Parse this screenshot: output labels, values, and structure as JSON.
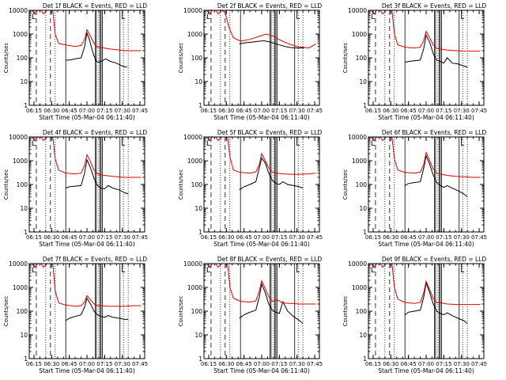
{
  "colors": {
    "events": "#000000",
    "lld": "#e00000",
    "axis": "#000000",
    "background": "#ffffff"
  },
  "x_tick_labels": [
    "06:15",
    "06:30",
    "06:45",
    "07:00",
    "07:15",
    "07:30",
    "07:45"
  ],
  "y_tick_labels": [
    "1",
    "10",
    "100",
    "1000",
    "10000"
  ],
  "ylabel": "Counts/sec",
  "xlabel": "Start Time (05-Mar-04 06:11:40)",
  "markers": {
    "dashed_lines": [
      "06:17",
      "06:29"
    ],
    "dotted_lines": [
      "06:25",
      "06:33",
      "07:10",
      "07:31",
      "07:35"
    ],
    "solid_lines": [
      "06:42",
      "07:07",
      "07:08",
      "07:11",
      "07:12",
      "07:13",
      "07:28"
    ],
    "corner_label_left": "L",
    "corner_label_right": "L"
  },
  "chart_data": [
    {
      "type": "line",
      "title": "Det 1f BLACK = Events, RED = LLD",
      "xlim": [
        "06:11",
        "07:49"
      ],
      "ylim": [
        1,
        10000
      ],
      "yscale": "log",
      "series": [
        {
          "name": "Events",
          "color": "#000000",
          "x": [
            "06:42",
            "06:45",
            "06:50",
            "06:55",
            "06:58",
            "07:00",
            "07:02",
            "07:04",
            "07:06",
            "07:08",
            "07:10",
            "07:13",
            "07:16",
            "07:20",
            "07:25",
            "07:30",
            "07:34"
          ],
          "values": [
            80,
            80,
            90,
            100,
            300,
            1100,
            600,
            250,
            120,
            70,
            65,
            75,
            90,
            70,
            60,
            45,
            40
          ]
        },
        {
          "name": "LLD",
          "color": "#e00000",
          "x": [
            "06:13",
            "06:16",
            "06:18",
            "06:21",
            "06:23",
            "06:26",
            "06:28",
            "06:31",
            "06:33",
            "06:36",
            "06:42",
            "06:50",
            "06:55",
            "06:58",
            "07:00",
            "07:03",
            "07:06",
            "07:09",
            "07:13",
            "07:18",
            "07:25",
            "07:32",
            "07:40",
            "07:46"
          ],
          "values": [
            10000,
            7000,
            10000,
            10000,
            7000,
            10000,
            10000,
            10000,
            1000,
            400,
            350,
            300,
            330,
            600,
            1500,
            800,
            400,
            280,
            270,
            240,
            220,
            200,
            200,
            200
          ]
        }
      ]
    },
    {
      "type": "line",
      "title": "Det 2f BLACK = Events, RED = LLD",
      "xlim": [
        "06:11",
        "07:49"
      ],
      "ylim": [
        1,
        10000
      ],
      "yscale": "log",
      "series": [
        {
          "name": "Events",
          "color": "#000000",
          "x": [
            "06:41",
            "06:45",
            "06:52",
            "06:58",
            "07:02",
            "07:06",
            "07:10",
            "07:15",
            "07:20",
            "07:25",
            "07:30",
            "07:36"
          ],
          "values": [
            380,
            420,
            460,
            500,
            520,
            480,
            420,
            350,
            300,
            270,
            260,
            260
          ]
        },
        {
          "name": "LLD",
          "color": "#e00000",
          "x": [
            "06:13",
            "06:16",
            "06:18",
            "06:21",
            "06:23",
            "06:26",
            "06:29",
            "06:32",
            "06:36",
            "06:42",
            "06:50",
            "06:58",
            "07:04",
            "07:10",
            "07:16",
            "07:22",
            "07:30",
            "07:40",
            "07:46"
          ],
          "values": [
            10000,
            7000,
            10000,
            10000,
            7000,
            10000,
            8000,
            2000,
            700,
            500,
            600,
            800,
            1000,
            800,
            550,
            400,
            300,
            260,
            380
          ]
        }
      ]
    },
    {
      "type": "line",
      "title": "Det 3f BLACK = Events, RED = LLD",
      "xlim": [
        "06:11",
        "07:49"
      ],
      "ylim": [
        1,
        10000
      ],
      "yscale": "log",
      "series": [
        {
          "name": "Events",
          "color": "#000000",
          "x": [
            "06:42",
            "06:45",
            "06:50",
            "06:55",
            "06:58",
            "07:00",
            "07:03",
            "07:06",
            "07:09",
            "07:12",
            "07:15",
            "07:18",
            "07:22",
            "07:27",
            "07:32",
            "07:35"
          ],
          "values": [
            65,
            70,
            75,
            80,
            250,
            900,
            450,
            150,
            80,
            70,
            60,
            100,
            60,
            55,
            45,
            40
          ]
        },
        {
          "name": "LLD",
          "color": "#e00000",
          "x": [
            "06:13",
            "06:16",
            "06:18",
            "06:21",
            "06:23",
            "06:26",
            "06:28",
            "06:31",
            "06:33",
            "06:36",
            "06:42",
            "06:50",
            "06:55",
            "06:58",
            "07:00",
            "07:03",
            "07:06",
            "07:09",
            "07:13",
            "07:18",
            "07:25",
            "07:32",
            "07:40",
            "07:46"
          ],
          "values": [
            10000,
            7000,
            10000,
            10000,
            7000,
            10000,
            10000,
            10000,
            1000,
            350,
            280,
            260,
            280,
            550,
            1300,
            700,
            350,
            250,
            230,
            210,
            200,
            190,
            190,
            190
          ]
        }
      ]
    },
    {
      "type": "line",
      "title": "Det 4f BLACK = Events, RED = LLD",
      "xlim": [
        "06:11",
        "07:49"
      ],
      "ylim": [
        1,
        10000
      ],
      "yscale": "log",
      "series": [
        {
          "name": "Events",
          "color": "#000000",
          "x": [
            "06:42",
            "06:45",
            "06:50",
            "06:55",
            "06:58",
            "07:00",
            "07:03",
            "07:06",
            "07:09",
            "07:12",
            "07:15",
            "07:18",
            "07:22",
            "07:27",
            "07:32",
            "07:35"
          ],
          "values": [
            70,
            80,
            85,
            90,
            300,
            1100,
            500,
            180,
            90,
            70,
            65,
            90,
            70,
            60,
            45,
            40
          ]
        },
        {
          "name": "LLD",
          "color": "#e00000",
          "x": [
            "06:13",
            "06:16",
            "06:18",
            "06:21",
            "06:23",
            "06:26",
            "06:28",
            "06:31",
            "06:33",
            "06:36",
            "06:42",
            "06:50",
            "06:55",
            "06:58",
            "07:00",
            "07:03",
            "07:06",
            "07:09",
            "07:13",
            "07:18",
            "07:25",
            "07:32",
            "07:40",
            "07:46"
          ],
          "values": [
            10000,
            7000,
            10000,
            10000,
            7000,
            10000,
            10000,
            10000,
            1200,
            400,
            300,
            280,
            300,
            650,
            1800,
            900,
            400,
            280,
            250,
            230,
            210,
            200,
            200,
            200
          ]
        }
      ]
    },
    {
      "type": "line",
      "title": "Det 5f BLACK = Events, RED = LLD",
      "xlim": [
        "06:11",
        "07:49"
      ],
      "ylim": [
        1,
        10000
      ],
      "yscale": "log",
      "series": [
        {
          "name": "Events",
          "color": "#000000",
          "x": [
            "06:41",
            "06:45",
            "06:50",
            "06:55",
            "06:58",
            "07:00",
            "07:03",
            "07:06",
            "07:09",
            "07:12",
            "07:15",
            "07:18",
            "07:22",
            "07:27",
            "07:32",
            "07:35"
          ],
          "values": [
            60,
            80,
            100,
            130,
            500,
            1300,
            800,
            300,
            150,
            110,
            100,
            130,
            100,
            90,
            80,
            70
          ]
        },
        {
          "name": "LLD",
          "color": "#e00000",
          "x": [
            "06:13",
            "06:16",
            "06:18",
            "06:21",
            "06:23",
            "06:26",
            "06:28",
            "06:31",
            "06:33",
            "06:36",
            "06:42",
            "06:50",
            "06:55",
            "06:58",
            "07:00",
            "07:03",
            "07:06",
            "07:09",
            "07:13",
            "07:18",
            "07:25",
            "07:32",
            "07:40",
            "07:46"
          ],
          "values": [
            10000,
            7000,
            10000,
            10000,
            7000,
            10000,
            10000,
            10000,
            1500,
            400,
            320,
            300,
            340,
            700,
            2000,
            1000,
            500,
            330,
            300,
            280,
            270,
            270,
            280,
            300
          ]
        }
      ]
    },
    {
      "type": "line",
      "title": "Det 6f BLACK = Events, RED = LLD",
      "xlim": [
        "06:11",
        "07:49"
      ],
      "ylim": [
        1,
        10000
      ],
      "yscale": "log",
      "series": [
        {
          "name": "Events",
          "color": "#000000",
          "x": [
            "06:42",
            "06:45",
            "06:50",
            "06:55",
            "06:58",
            "07:00",
            "07:03",
            "07:06",
            "07:09",
            "07:12",
            "07:15",
            "07:18",
            "07:22",
            "07:27",
            "07:32",
            "07:35"
          ],
          "values": [
            90,
            110,
            120,
            130,
            500,
            1600,
            700,
            250,
            120,
            90,
            75,
            90,
            70,
            55,
            40,
            30
          ]
        },
        {
          "name": "LLD",
          "color": "#e00000",
          "x": [
            "06:13",
            "06:16",
            "06:18",
            "06:21",
            "06:23",
            "06:26",
            "06:28",
            "06:31",
            "06:33",
            "06:36",
            "06:42",
            "06:50",
            "06:55",
            "06:58",
            "07:00",
            "07:03",
            "07:06",
            "07:09",
            "07:13",
            "07:18",
            "07:25",
            "07:32",
            "07:40",
            "07:46"
          ],
          "values": [
            10000,
            7000,
            10000,
            10000,
            7000,
            10000,
            10000,
            10000,
            1200,
            400,
            320,
            300,
            330,
            700,
            2200,
            1000,
            450,
            300,
            270,
            240,
            220,
            210,
            200,
            200
          ]
        }
      ]
    },
    {
      "type": "line",
      "title": "Det 7f BLACK = Events, RED = LLD",
      "xlim": [
        "06:11",
        "07:49"
      ],
      "ylim": [
        1,
        10000
      ],
      "yscale": "log",
      "series": [
        {
          "name": "Events",
          "color": "#000000",
          "x": [
            "06:42",
            "06:45",
            "06:50",
            "06:55",
            "06:58",
            "07:00",
            "07:03",
            "07:06",
            "07:09",
            "07:12",
            "07:15",
            "07:18",
            "07:22",
            "07:27",
            "07:32",
            "07:35"
          ],
          "values": [
            40,
            50,
            60,
            70,
            150,
            350,
            200,
            100,
            70,
            60,
            55,
            65,
            55,
            50,
            45,
            45
          ]
        },
        {
          "name": "LLD",
          "color": "#e00000",
          "x": [
            "06:13",
            "06:16",
            "06:18",
            "06:21",
            "06:23",
            "06:26",
            "06:28",
            "06:31",
            "06:33",
            "06:36",
            "06:42",
            "06:50",
            "06:55",
            "06:58",
            "07:00",
            "07:03",
            "07:06",
            "07:09",
            "07:13",
            "07:18",
            "07:25",
            "07:32",
            "07:40",
            "07:46"
          ],
          "values": [
            10000,
            7000,
            10000,
            10000,
            7000,
            10000,
            10000,
            10000,
            700,
            220,
            180,
            160,
            170,
            250,
            450,
            300,
            200,
            170,
            170,
            160,
            160,
            160,
            170,
            170
          ]
        }
      ]
    },
    {
      "type": "line",
      "title": "Det 8f BLACK = Events, RED = LLD",
      "xlim": [
        "06:11",
        "07:49"
      ],
      "ylim": [
        1,
        10000
      ],
      "yscale": "log",
      "series": [
        {
          "name": "Events",
          "color": "#000000",
          "x": [
            "06:41",
            "06:45",
            "06:50",
            "06:55",
            "06:58",
            "07:00",
            "07:03",
            "07:06",
            "07:09",
            "07:12",
            "07:15",
            "07:18",
            "07:22",
            "07:27",
            "07:32",
            "07:35"
          ],
          "values": [
            50,
            70,
            90,
            110,
            400,
            1400,
            600,
            200,
            110,
            90,
            80,
            250,
            100,
            60,
            40,
            30
          ]
        },
        {
          "name": "LLD",
          "color": "#e00000",
          "x": [
            "06:13",
            "06:16",
            "06:18",
            "06:21",
            "06:23",
            "06:26",
            "06:28",
            "06:31",
            "06:33",
            "06:36",
            "06:42",
            "06:50",
            "06:55",
            "06:58",
            "07:00",
            "07:03",
            "07:06",
            "07:09",
            "07:13",
            "07:18",
            "07:25",
            "07:32",
            "07:40",
            "07:46"
          ],
          "values": [
            10000,
            7000,
            10000,
            10000,
            7000,
            10000,
            10000,
            10000,
            1000,
            350,
            260,
            240,
            270,
            700,
            1900,
            900,
            400,
            260,
            300,
            220,
            210,
            200,
            200,
            200
          ]
        }
      ]
    },
    {
      "type": "line",
      "title": "Det 9f BLACK = Events, RED = LLD",
      "xlim": [
        "06:11",
        "07:49"
      ],
      "ylim": [
        1,
        10000
      ],
      "yscale": "log",
      "series": [
        {
          "name": "Events",
          "color": "#000000",
          "x": [
            "06:42",
            "06:45",
            "06:50",
            "06:55",
            "06:58",
            "07:00",
            "07:03",
            "07:06",
            "07:09",
            "07:12",
            "07:15",
            "07:18",
            "07:22",
            "07:27",
            "07:32",
            "07:35"
          ],
          "values": [
            70,
            90,
            100,
            110,
            400,
            1500,
            600,
            200,
            100,
            80,
            70,
            85,
            65,
            50,
            40,
            30
          ]
        },
        {
          "name": "LLD",
          "color": "#e00000",
          "x": [
            "06:13",
            "06:16",
            "06:18",
            "06:21",
            "06:23",
            "06:26",
            "06:28",
            "06:31",
            "06:33",
            "06:36",
            "06:42",
            "06:50",
            "06:55",
            "06:58",
            "07:00",
            "07:03",
            "07:06",
            "07:09",
            "07:13",
            "07:18",
            "07:25",
            "07:32",
            "07:40",
            "07:46"
          ],
          "values": [
            10000,
            7000,
            10000,
            10000,
            7000,
            10000,
            10000,
            10000,
            1000,
            320,
            230,
            210,
            230,
            600,
            1800,
            800,
            350,
            230,
            220,
            200,
            190,
            190,
            190,
            190
          ]
        }
      ]
    }
  ]
}
